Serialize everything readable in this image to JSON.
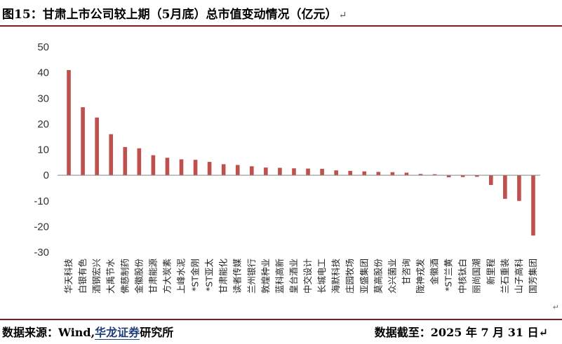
{
  "header": {
    "title": "图15：甘肃上市公司较上期（5月底）总市值变动情况（亿元）",
    "return_glyph": "↵"
  },
  "footer": {
    "source_prefix": "数据来源：Wind,",
    "source_brand": "华龙证券",
    "source_suffix": "研究所",
    "date_label": "数据截至：2025 年 7 月 31 日",
    "return_glyph": "↵",
    "corner_glyph": "↵"
  },
  "colors": {
    "bar": "#c0504d",
    "axis": "#888888",
    "rule": "#7a1f1f"
  },
  "chart_data": {
    "type": "bar",
    "title": "甘肃上市公司较上期（5月底）总市值变动情况（亿元）",
    "xlabel": "",
    "ylabel": "",
    "ylim": [
      -30,
      50
    ],
    "yticks": [
      -30,
      -20,
      -10,
      0,
      10,
      20,
      30,
      40,
      50
    ],
    "categories": [
      "华天科技",
      "白银有色",
      "酒钢宏兴",
      "大禹节水",
      "佛慈制药",
      "金徽股份",
      "甘肃能源",
      "方大炭素",
      "上峰水泥",
      "*ST金刚",
      "*ST亚太",
      "甘肃能化",
      "读者传媒",
      "兰州银行",
      "敦煌种业",
      "蓝科高新",
      "皇台酒业",
      "中交设计",
      "长城电工",
      "海默科技",
      "庄园牧场",
      "亚盛集团",
      "莫高股份",
      "众兴菌业",
      "甘咨询",
      "陇神戎发",
      "金徽酒",
      "*ST兰黄",
      "中核钛白",
      "丽尚国潮",
      "新里程",
      "兰石重装",
      "山子高科",
      "国芳集团"
    ],
    "values": [
      41,
      26.5,
      22.5,
      16,
      11,
      10.5,
      7.8,
      6.8,
      6.2,
      6.0,
      5.2,
      4.3,
      4.0,
      3.5,
      3.0,
      2.9,
      2.7,
      2.6,
      2.5,
      1.9,
      1.7,
      1.5,
      1.3,
      1.2,
      1.0,
      0.5,
      0.4,
      -0.8,
      -0.7,
      -0.6,
      -3.8,
      -9.2,
      -10.0,
      -23.5
    ]
  }
}
